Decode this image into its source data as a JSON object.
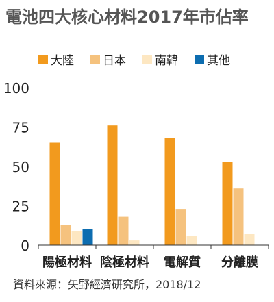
{
  "chart_data": {
    "type": "bar",
    "title": "電池四大核心材料2017年市佔率",
    "categories": [
      "陽極材料",
      "陰極材料",
      "電解質",
      "分離膜"
    ],
    "series": [
      {
        "name": "大陸",
        "color": "#f29a1e",
        "values": [
          65,
          76,
          68,
          53
        ]
      },
      {
        "name": "日本",
        "color": "#f5c27e",
        "values": [
          13,
          18,
          23,
          36
        ]
      },
      {
        "name": "南韓",
        "color": "#fde7c2",
        "values": [
          9,
          3,
          6,
          7
        ]
      },
      {
        "name": "其他",
        "color": "#0d6db0",
        "values": [
          10,
          0,
          0,
          0
        ]
      }
    ],
    "yticks": [
      0,
      25,
      50,
      75,
      100
    ],
    "ylim": [
      0,
      100
    ],
    "legend_position": "top",
    "grid": false,
    "source": "資料來源：矢野經濟研究所，2018/12"
  }
}
